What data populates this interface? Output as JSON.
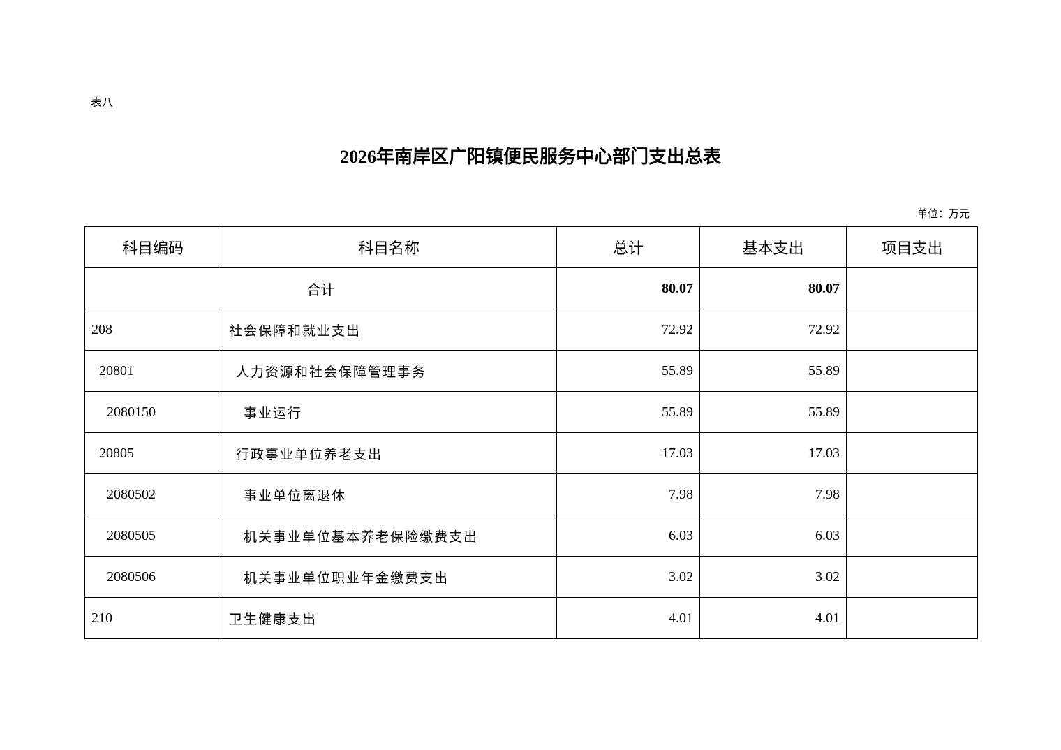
{
  "document": {
    "table_label": "表八",
    "title": "2026年南岸区广阳镇便民服务中心部门支出总表",
    "unit": "单位：万元"
  },
  "table": {
    "headers": [
      "科目编码",
      "科目名称",
      "总计",
      "基本支出",
      "项目支出"
    ],
    "total_row": {
      "label": "合计",
      "total": "80.07",
      "basic": "80.07",
      "project": ""
    },
    "rows": [
      {
        "code": "208",
        "name": "社会保障和就业支出",
        "total": "72.92",
        "basic": "72.92",
        "project": "",
        "level": 0
      },
      {
        "code": "20801",
        "name": "人力资源和社会保障管理事务",
        "total": "55.89",
        "basic": "55.89",
        "project": "",
        "level": 1
      },
      {
        "code": "2080150",
        "name": "事业运行",
        "total": "55.89",
        "basic": "55.89",
        "project": "",
        "level": 2
      },
      {
        "code": "20805",
        "name": "行政事业单位养老支出",
        "total": "17.03",
        "basic": "17.03",
        "project": "",
        "level": 1
      },
      {
        "code": "2080502",
        "name": "事业单位离退休",
        "total": "7.98",
        "basic": "7.98",
        "project": "",
        "level": 2
      },
      {
        "code": "2080505",
        "name": "机关事业单位基本养老保险缴费支出",
        "total": "6.03",
        "basic": "6.03",
        "project": "",
        "level": 2
      },
      {
        "code": "2080506",
        "name": "机关事业单位职业年金缴费支出",
        "total": "3.02",
        "basic": "3.02",
        "project": "",
        "level": 2
      },
      {
        "code": "210",
        "name": "卫生健康支出",
        "total": "4.01",
        "basic": "4.01",
        "project": "",
        "level": 0
      }
    ]
  }
}
